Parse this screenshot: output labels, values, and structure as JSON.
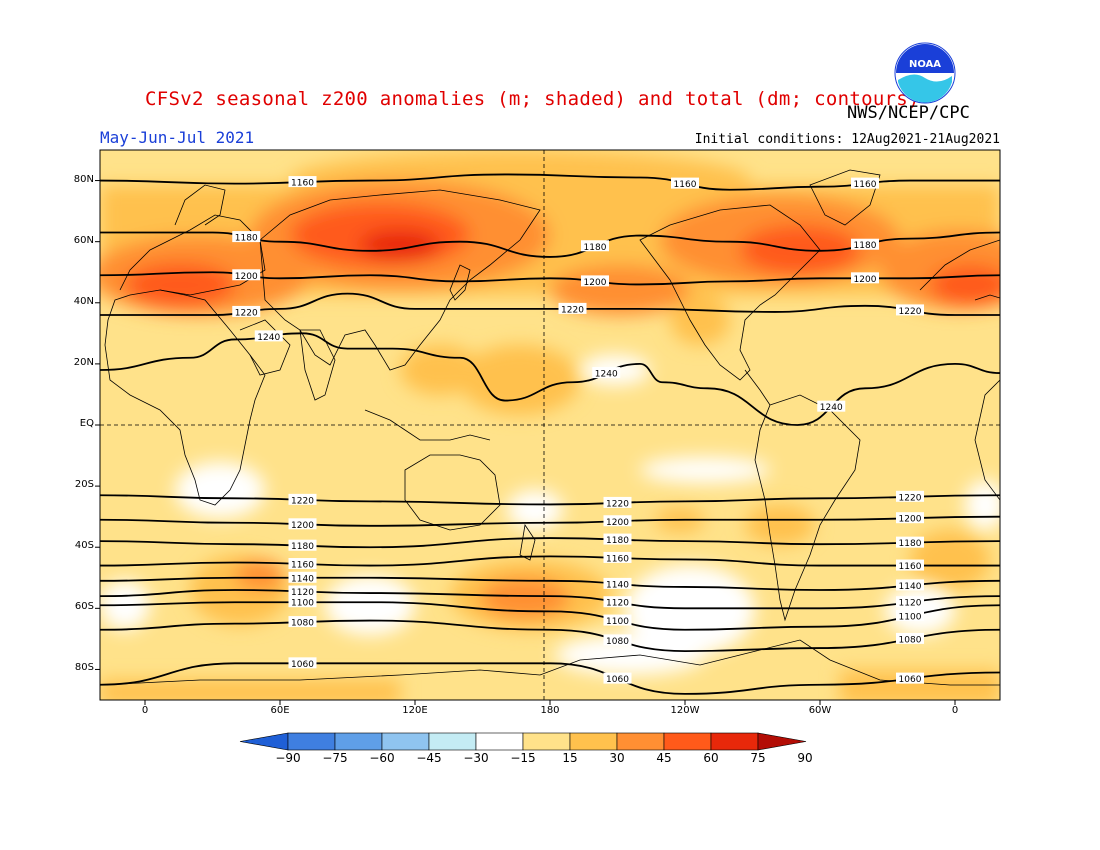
{
  "header": {
    "title": "CFSv2 seasonal z200 anomalies (m; shaded) and total (dm; contours)",
    "agency": "NWS/NCEP/CPC",
    "season": "May-Jun-Jul 2021",
    "initial_conditions": "Initial conditions: 12Aug2021-21Aug2021",
    "logo_text": "NOAA"
  },
  "colors": {
    "title": "#e00000",
    "season": "#1a3fd8",
    "scale": [
      "#1f5fd6",
      "#3f7fe0",
      "#5f9fe8",
      "#8fc4f0",
      "#c4ecf4",
      "#ffffff",
      "#ffe28a",
      "#ffc14d",
      "#ff8f33",
      "#ff5a1a",
      "#e8280a",
      "#b30d05"
    ],
    "land_outline": "#000000",
    "contour": "#000000"
  },
  "map": {
    "projection": "cylindrical-equidistant",
    "lon_range": [
      -20,
      380
    ],
    "lat_range": [
      -90,
      90
    ],
    "y_ticks": [
      "80N",
      "60N",
      "40N",
      "20N",
      "EQ",
      "20S",
      "40S",
      "60S",
      "80S"
    ],
    "x_ticks": [
      "0",
      "60E",
      "120E",
      "180",
      "120W",
      "60W",
      "0"
    ]
  },
  "chart_data": {
    "type": "heatmap",
    "title": "CFSv2 seasonal z200 anomalies (m; shaded) and total (dm; contours)",
    "subtitle": "May-Jun-Jul 2021",
    "colorbar": {
      "levels": [
        -90,
        -75,
        -60,
        -45,
        -30,
        -15,
        15,
        30,
        45,
        60,
        75,
        90
      ],
      "labels": [
        "-90",
        "-75",
        "-60",
        "-45",
        "-30",
        "-15",
        "15",
        "30",
        "45",
        "60",
        "75",
        "90"
      ]
    },
    "contour_labels": [
      "1160",
      "1180",
      "1200",
      "1220",
      "1240",
      "1140",
      "1120",
      "1100",
      "1080",
      "1060"
    ],
    "contours": [
      {
        "value": "1160",
        "lat_profile": [
          [
            -20,
            80
          ],
          [
            40,
            79
          ],
          [
            100,
            80
          ],
          [
            160,
            82
          ],
          [
            220,
            81
          ],
          [
            260,
            77
          ],
          [
            300,
            78
          ],
          [
            340,
            80
          ],
          [
            380,
            80
          ]
        ]
      },
      {
        "value": "1180",
        "lat_profile": [
          [
            -20,
            63
          ],
          [
            30,
            63
          ],
          [
            60,
            60
          ],
          [
            100,
            57
          ],
          [
            140,
            60
          ],
          [
            180,
            55
          ],
          [
            220,
            62
          ],
          [
            260,
            60
          ],
          [
            300,
            57
          ],
          [
            340,
            61
          ],
          [
            380,
            63
          ]
        ]
      },
      {
        "value": "1200",
        "lat_profile": [
          [
            -20,
            49
          ],
          [
            30,
            50
          ],
          [
            60,
            48
          ],
          [
            100,
            49
          ],
          [
            140,
            47
          ],
          [
            180,
            48
          ],
          [
            220,
            46
          ],
          [
            260,
            47
          ],
          [
            300,
            48
          ],
          [
            340,
            48
          ],
          [
            380,
            49
          ]
        ]
      },
      {
        "value": "1220",
        "lat_profile": [
          [
            -20,
            36
          ],
          [
            30,
            36
          ],
          [
            60,
            38
          ],
          [
            90,
            43
          ],
          [
            120,
            38
          ],
          [
            160,
            38
          ],
          [
            220,
            38
          ],
          [
            280,
            37
          ],
          [
            320,
            39
          ],
          [
            360,
            36
          ],
          [
            380,
            36
          ]
        ]
      },
      {
        "value": "1240",
        "lat_profile": [
          [
            -20,
            18
          ],
          [
            20,
            22
          ],
          [
            40,
            28
          ],
          [
            70,
            30
          ],
          [
            90,
            25
          ],
          [
            110,
            25
          ],
          [
            140,
            22
          ],
          [
            160,
            8
          ],
          [
            190,
            14
          ],
          [
            220,
            20
          ],
          [
            230,
            14
          ],
          [
            250,
            12
          ],
          [
            290,
            0
          ],
          [
            320,
            12
          ],
          [
            360,
            20
          ],
          [
            380,
            17
          ]
        ]
      },
      {
        "value": "1220",
        "lat_profile": [
          [
            -20,
            -23
          ],
          [
            40,
            -24
          ],
          [
            100,
            -25
          ],
          [
            180,
            -26
          ],
          [
            240,
            -25
          ],
          [
            300,
            -24
          ],
          [
            380,
            -23
          ]
        ]
      },
      {
        "value": "1200",
        "lat_profile": [
          [
            -20,
            -31
          ],
          [
            40,
            -32
          ],
          [
            100,
            -33
          ],
          [
            180,
            -32
          ],
          [
            240,
            -31
          ],
          [
            300,
            -31
          ],
          [
            380,
            -30
          ]
        ]
      },
      {
        "value": "1180",
        "lat_profile": [
          [
            -20,
            -38
          ],
          [
            40,
            -39
          ],
          [
            100,
            -40
          ],
          [
            180,
            -37
          ],
          [
            240,
            -38
          ],
          [
            300,
            -39
          ],
          [
            380,
            -38
          ]
        ]
      },
      {
        "value": "1160",
        "lat_profile": [
          [
            -20,
            -46
          ],
          [
            40,
            -45
          ],
          [
            100,
            -46
          ],
          [
            180,
            -43
          ],
          [
            240,
            -44
          ],
          [
            300,
            -46
          ],
          [
            380,
            -46
          ]
        ]
      },
      {
        "value": "1140",
        "lat_profile": [
          [
            -20,
            -51
          ],
          [
            40,
            -50
          ],
          [
            100,
            -50
          ],
          [
            180,
            -51
          ],
          [
            240,
            -53
          ],
          [
            300,
            -54
          ],
          [
            380,
            -51
          ]
        ]
      },
      {
        "value": "1120",
        "lat_profile": [
          [
            -20,
            -56
          ],
          [
            40,
            -54
          ],
          [
            100,
            -55
          ],
          [
            180,
            -56
          ],
          [
            240,
            -60
          ],
          [
            300,
            -60
          ],
          [
            380,
            -56
          ]
        ]
      },
      {
        "value": "1100",
        "lat_profile": [
          [
            -20,
            -59
          ],
          [
            40,
            -58
          ],
          [
            100,
            -58
          ],
          [
            180,
            -61
          ],
          [
            240,
            -67
          ],
          [
            300,
            -66
          ],
          [
            380,
            -59
          ]
        ]
      },
      {
        "value": "1080",
        "lat_profile": [
          [
            -20,
            -67
          ],
          [
            40,
            -65
          ],
          [
            100,
            -64
          ],
          [
            180,
            -67
          ],
          [
            240,
            -74
          ],
          [
            300,
            -73
          ],
          [
            380,
            -67
          ]
        ]
      },
      {
        "value": "1060",
        "lat_profile": [
          [
            -20,
            -85
          ],
          [
            40,
            -78
          ],
          [
            100,
            -78
          ],
          [
            180,
            -78
          ],
          [
            240,
            -88
          ],
          [
            300,
            -85
          ],
          [
            380,
            -81
          ]
        ]
      }
    ]
  }
}
